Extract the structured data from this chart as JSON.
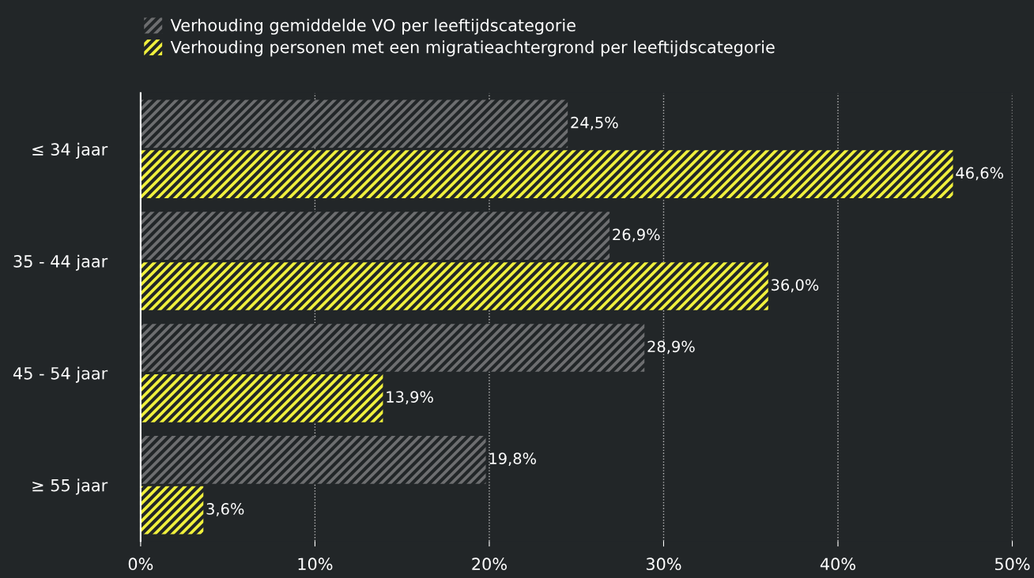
{
  "chart_data": {
    "type": "bar",
    "orientation": "horizontal",
    "categories": [
      "≤ 34 jaar",
      "35 - 44 jaar",
      "45 - 54 jaar",
      "≥ 55 jaar"
    ],
    "series": [
      {
        "name": "Verhouding gemiddelde VO per leeftijdscategorie",
        "color": "#6d6e70",
        "values": [
          24.5,
          26.9,
          28.9,
          19.8
        ],
        "value_labels": [
          "24,5%",
          "26,9%",
          "28,9%",
          "19,8%"
        ]
      },
      {
        "name": "Verhouding personen met een migratieachtergrond per leeftijdscategorie",
        "color": "#f0f03c",
        "values": [
          46.6,
          36.0,
          13.9,
          3.6
        ],
        "value_labels": [
          "46,6%",
          "36,0%",
          "13,9%",
          "3,6%"
        ]
      }
    ],
    "xlim": [
      0,
      50
    ],
    "xticks": [
      {
        "value": 0,
        "label": "0%"
      },
      {
        "value": 10,
        "label": "10%"
      },
      {
        "value": 20,
        "label": "20%"
      },
      {
        "value": 30,
        "label": "30%"
      },
      {
        "value": 40,
        "label": "40%"
      },
      {
        "value": 50,
        "label": "50%"
      }
    ],
    "grid": "x",
    "legend": "top left"
  }
}
